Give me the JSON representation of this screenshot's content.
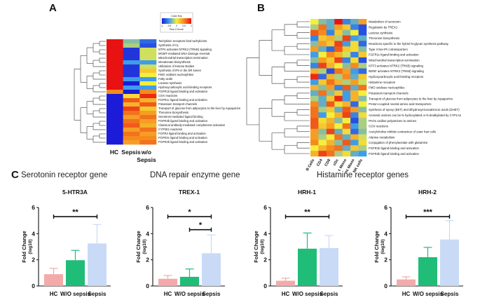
{
  "panels": {
    "a": {
      "letter": "A",
      "color_key_title": "Color Key",
      "color_key_ticks": [
        "-1",
        "-0.5",
        "0",
        "0.5",
        "1"
      ],
      "color_key_sub": "Row Z-Score",
      "columns": [
        "HC",
        "Sepsis",
        "w/o Sepsis"
      ],
      "rows": [
        "Tachykinin receptors bind tachykinins",
        "Synthesis of CL",
        "NTF4 activates NTRK2 (TRKB) signaling",
        "MGMT-mediated DNA damage reversal",
        "Mitochondrial transcription termination",
        "Mevalonate biosynthesis",
        "Utilization of Ketone Bodies",
        "Synthesis of IPs in the ER lumen",
        "FMO oxidises nucleophiles",
        "Fatty acids",
        "Lactose synthesis",
        "Hydroxycarboxylic acid-binding receptors",
        "FGFR1b ligand binding and activation",
        "COX reactions",
        "FGFR1c ligand binding and activation",
        "Potassium transport channels",
        "Transport of glucose from adipocytes to the liver by Aquaporins",
        "Threonine biosynthesis",
        "Serotonin-mediated ligand binding",
        "FGFR3b ligand binding and activation",
        "Classical antibody-mediated complement activation",
        "CYP2E1 reactions",
        "FGFR4 ligand binding and activation",
        "FGFR3c ligand binding and activation",
        "FGFR2b ligand binding and activation"
      ],
      "zscores": [
        [
          1,
          -0.3,
          -0.7
        ],
        [
          1,
          -0.2,
          -0.8
        ],
        [
          1,
          -0.9,
          -0.1
        ],
        [
          1,
          -0.9,
          -0.1
        ],
        [
          1,
          -0.9,
          -0.1
        ],
        [
          1,
          -0.5,
          -0.5
        ],
        [
          1,
          -0.9,
          -0.1
        ],
        [
          1,
          -0.9,
          0.2
        ],
        [
          1,
          -0.9,
          0
        ],
        [
          1,
          -0.5,
          -0.5
        ],
        [
          1,
          -1,
          0
        ],
        [
          1,
          -0.5,
          -0.5
        ],
        [
          0.5,
          -1,
          0.5
        ],
        [
          -1,
          0.1,
          0.9
        ],
        [
          -1,
          0.7,
          0.3
        ],
        [
          -1,
          0.3,
          0.7
        ],
        [
          -1,
          0.8,
          0.2
        ],
        [
          -1,
          0.6,
          0.4
        ],
        [
          -1,
          0.4,
          0.6
        ],
        [
          -1,
          0.6,
          0.4
        ],
        [
          -1,
          0.7,
          0.3
        ],
        [
          -1,
          0.4,
          0.6
        ],
        [
          -1,
          0.6,
          0.4
        ],
        [
          -1,
          0.5,
          0.5
        ],
        [
          -1,
          0.4,
          0.6
        ]
      ]
    },
    "b": {
      "letter": "B",
      "columns": [
        "B Cells",
        "CD4",
        "CD8",
        "cDc",
        "c Mono",
        "nc Mono",
        "NK cells"
      ],
      "rows": [
        "Metabolism of serotonin",
        "Regulation by TREX1",
        "Lactose synthesis",
        "Threonine biosynthesis",
        "Reactions specific to the hybrid N-glycan synthesis pathway",
        "Type II Na+/Pi cotransporters",
        "FGFR1c ligand binding and activation",
        "Mitochondrial transcription termination",
        "NTF3 activates NTRK2 (TRKB) signaling",
        "BDNF activates NTRK2 (TRKB) signaling",
        "Hydroxycarboxylic acid-binding receptors",
        "Histamine receptors",
        "FMO oxidises nucleophiles",
        "Potassium transport channels",
        "Transport of glucose from adipocytes to the liver by Aquaporins",
        "Proton-coupled neutral amino acid transporters",
        "Synthesis of epoxy (EET) and dihydroxyeicosatrienoic acids (DHET)",
        "Aromatic amines can be N-hydroxylated or N-dealkylated by CYP1A2",
        "PAOs oxidise polyamines to amines",
        "COX reactions",
        "Acetylcholine inhibits contraction of outer hair cells",
        "Alanine metabolism",
        "Conjugation of phenylacetate with glutamine",
        "FGFR1b ligand binding and activation",
        "FGFR2b ligand binding and activation"
      ],
      "zscores": [
        [
          0,
          -0.3,
          -0.4,
          1,
          -0.6,
          -0.4,
          0.4
        ],
        [
          -0.2,
          0.6,
          -0.4,
          0.4,
          0.2,
          -0.6,
          -0.8
        ],
        [
          0.7,
          0.5,
          -0.6,
          0.2,
          -0.3,
          0,
          -0.8
        ],
        [
          -0.6,
          0.2,
          0.3,
          -0.2,
          0.8,
          -0.5,
          -0.4
        ],
        [
          -0.3,
          0.4,
          0.2,
          0.8,
          -0.5,
          0.1,
          -0.7
        ],
        [
          0.4,
          -0.4,
          -0.7,
          0.7,
          0.2,
          0.1,
          -0.3
        ],
        [
          -0.5,
          0,
          0.5,
          0.3,
          -0.1,
          -0.6,
          0.2
        ],
        [
          -0.3,
          0.4,
          0.2,
          0.8,
          -0.6,
          0.1,
          -0.8
        ],
        [
          -0.6,
          0.8,
          0.3,
          0,
          -0.3,
          0.5,
          -0.2
        ],
        [
          0.3,
          -0.2,
          -0.8,
          0.6,
          0.4,
          -0.5,
          -0.7
        ],
        [
          0.9,
          -0.7,
          0.3,
          -0.2,
          0.5,
          -0.4,
          0.2
        ],
        [
          -0.5,
          0.2,
          0.6,
          0.3,
          -0.2,
          0.4,
          -0.1
        ],
        [
          0.3,
          -0.3,
          0.4,
          -0.6,
          0.7,
          -0.4,
          0.6
        ],
        [
          -0.4,
          0.6,
          -0.3,
          0.2,
          -0.5,
          0.3,
          0
        ],
        [
          -0.2,
          -0.4,
          0.2,
          0.9,
          -0.5,
          0.3,
          -0.3
        ],
        [
          0.5,
          -0.4,
          0.7,
          0.1,
          0.3,
          -0.7,
          0
        ],
        [
          0.6,
          -0.2,
          0.2,
          -0.4,
          0.7,
          0.4,
          -0.3
        ],
        [
          0.6,
          -0.5,
          0,
          0.3,
          0.8,
          -0.6,
          0.1
        ],
        [
          0.7,
          0.1,
          0.3,
          -0.3,
          0,
          -0.8,
          -0.2
        ],
        [
          0.7,
          0.2,
          0.4,
          0,
          0.6,
          -0.5,
          -0.2
        ],
        [
          0.4,
          -0.3,
          0.8,
          -0.4,
          0.1,
          -0.7,
          -0.3
        ],
        [
          0.4,
          -0.2,
          0,
          0.6,
          -0.4,
          0.3,
          -0.1
        ],
        [
          0.5,
          0,
          0.3,
          -0.3,
          0.7,
          -0.5,
          0.1
        ],
        [
          0,
          0.3,
          0.5,
          0.6,
          -0.4,
          0.2,
          -0.2
        ],
        [
          0.3,
          0.8,
          0.6,
          -0.2,
          0.1,
          -0.4,
          -0.5
        ]
      ]
    },
    "c": {
      "letter": "C",
      "section_titles": [
        "Serotonin receptor gene",
        "DNA repair enzyme gene",
        "Histamine receptor genes"
      ]
    }
  },
  "chart_data": [
    {
      "type": "heatmap",
      "id": "A",
      "title": "Color Key: Row Z-Score",
      "columns": [
        "HC",
        "Sepsis",
        "w/o Sepsis"
      ],
      "scale": [
        -1,
        1
      ]
    },
    {
      "type": "heatmap",
      "id": "B",
      "columns": [
        "B Cells",
        "CD4",
        "CD8",
        "cDc",
        "c Mono",
        "nc Mono",
        "NK cells"
      ],
      "scale": [
        -1,
        1
      ]
    },
    {
      "type": "bar",
      "id": "C1",
      "title": "5-HTR3A",
      "categories": [
        "HC",
        "W/O sepsis",
        "Sepsis"
      ],
      "values": [
        0.9,
        1.97,
        3.25
      ],
      "errors": [
        0.45,
        0.75,
        1.45
      ],
      "colors": [
        "#f4aaaa",
        "#1fbd78",
        "#c8daf6"
      ],
      "ylabel": "Fold Change (log10)",
      "ylim": [
        0,
        6
      ],
      "yticks": [
        "0",
        "2",
        "4",
        "6"
      ],
      "significance": [
        {
          "from": "HC",
          "to": "Sepsis",
          "label": "**",
          "level": 5.3
        }
      ]
    },
    {
      "type": "bar",
      "id": "C2",
      "title": "TREX-1",
      "categories": [
        "HC",
        "W/O sepsis",
        "Sepsis"
      ],
      "values": [
        0.55,
        0.7,
        2.5
      ],
      "errors": [
        0.25,
        0.6,
        1.4
      ],
      "colors": [
        "#f4aaaa",
        "#1fbd78",
        "#c8daf6"
      ],
      "ylabel": "Fold Change (log10)",
      "ylim": [
        0,
        6
      ],
      "yticks": [
        "0",
        "2",
        "4",
        "6"
      ],
      "significance": [
        {
          "from": "HC",
          "to": "Sepsis",
          "label": "*",
          "level": 5.3
        },
        {
          "from": "W/O sepsis",
          "to": "Sepsis",
          "label": "*",
          "level": 4.3
        }
      ]
    },
    {
      "type": "bar",
      "id": "C3",
      "title": "HRH-1",
      "categories": [
        "HC",
        "W/O sepsis",
        "Sepsis"
      ],
      "values": [
        0.4,
        2.85,
        2.9
      ],
      "errors": [
        0.2,
        1.2,
        0.95
      ],
      "colors": [
        "#f4aaaa",
        "#1fbd78",
        "#c8daf6"
      ],
      "ylabel": "Fold Change (log10)",
      "ylim": [
        0,
        6
      ],
      "yticks": [
        "0",
        "2",
        "4",
        "6"
      ],
      "significance": [
        {
          "from": "HC",
          "to": "Sepsis",
          "label": "**",
          "level": 5.3
        }
      ]
    },
    {
      "type": "bar",
      "id": "C4",
      "title": "HRH-2",
      "categories": [
        "HC",
        "W/O sepsis",
        "Sepsis"
      ],
      "values": [
        0.5,
        2.2,
        3.55
      ],
      "errors": [
        0.2,
        0.75,
        1.45
      ],
      "colors": [
        "#f4aaaa",
        "#1fbd78",
        "#c8daf6"
      ],
      "ylabel": "Fold Change (log10)",
      "ylim": [
        0,
        6
      ],
      "yticks": [
        "0",
        "2",
        "4",
        "6"
      ],
      "significance": [
        {
          "from": "HC",
          "to": "Sepsis",
          "label": "***",
          "level": 5.3
        }
      ]
    }
  ]
}
